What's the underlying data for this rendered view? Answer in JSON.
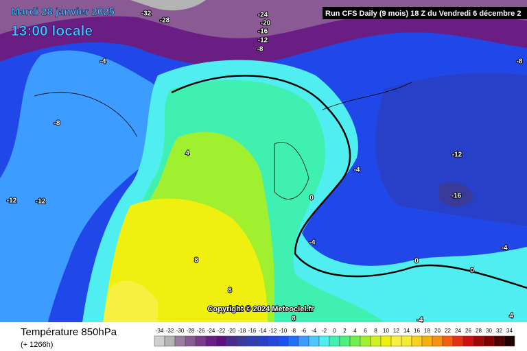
{
  "header": {
    "date": "Mardi 28 janvier 2025",
    "time": "13:00 locale",
    "run": "Run CFS Daily (9 mois) 18 Z du Vendredi 6 décembre 2"
  },
  "map": {
    "copyright": "Copyright © 2024 Meteociel.fr",
    "contour_labels": [
      "-32",
      "-28",
      "-24",
      "-20",
      "-16",
      "-12",
      "-8",
      "-4",
      "-8",
      "-12",
      "-12",
      "4",
      "-4",
      "0",
      "-12",
      "-16",
      "-4",
      "0",
      "8",
      "0",
      "-4",
      "8",
      "-8",
      "-4",
      "4",
      "8"
    ]
  },
  "footer": {
    "title": "Température 850hPa",
    "lead": "(+ 1266h)",
    "scale_labels": [
      "-34",
      "-32",
      "-30",
      "-28",
      "-26",
      "-24",
      "-22",
      "-20",
      "-18",
      "-16",
      "-14",
      "-12",
      "-10",
      "-8",
      "-6",
      "-4",
      "-2",
      "0",
      "2",
      "4",
      "6",
      "8",
      "10",
      "12",
      "14",
      "16",
      "18",
      "20",
      "22",
      "24",
      "26",
      "28",
      "30",
      "32",
      "34"
    ],
    "scale_colors": [
      "#d0d0d0",
      "#b4b4b4",
      "#9a7ea0",
      "#8a5a94",
      "#7a3a8a",
      "#6a1e84",
      "#5a1080",
      "#4a2a8c",
      "#3a3a9a",
      "#3040b0",
      "#2840c8",
      "#2448dc",
      "#1c50f0",
      "#2070ff",
      "#3c9cff",
      "#50c8ff",
      "#50eef0",
      "#40f0b0",
      "#50f080",
      "#70f050",
      "#a0f030",
      "#d0f020",
      "#f0f010",
      "#f8f040",
      "#f8e838",
      "#f8d020",
      "#f8b010",
      "#f89010",
      "#f06010",
      "#e83010",
      "#d01010",
      "#a00808",
      "#800000",
      "#500000",
      "#200000"
    ]
  }
}
